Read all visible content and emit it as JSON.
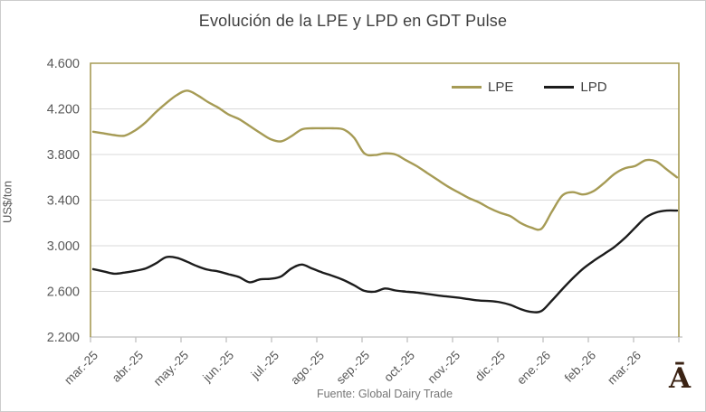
{
  "chart_data": {
    "type": "line",
    "title": "Evolución de la LPE y LPD en GDT Pulse",
    "ylabel": "US$/ton",
    "source_note": "Fuente: Global Dairy Trade",
    "x_tick_labels": [
      "mar.-25",
      "abr.-25",
      "may.-25",
      "jun.-25",
      "jul.-25",
      "ago.-25",
      "sep.-25",
      "oct.-25",
      "nov.-25",
      "dic.-25",
      "ene.-26",
      "feb.-26",
      "mar.-26"
    ],
    "ytick_labels": [
      "4.600",
      "4.200",
      "3.800",
      "3.400",
      "3.000",
      "2.600",
      "2.200"
    ],
    "ytick_values": [
      4600,
      4200,
      3800,
      3400,
      3000,
      2600,
      2200
    ],
    "ylim": [
      2200,
      4600
    ],
    "grid": true,
    "legend_position": "top-right-inside",
    "series": [
      {
        "name": "LPE",
        "color": "#A69B55",
        "values": [
          4000,
          3985,
          3970,
          3965,
          4010,
          4080,
          4170,
          4250,
          4320,
          4360,
          4320,
          4260,
          4210,
          4150,
          4110,
          4050,
          3990,
          3935,
          3915,
          3960,
          4020,
          4030,
          4030,
          4030,
          4020,
          3950,
          3810,
          3795,
          3810,
          3800,
          3750,
          3700,
          3640,
          3580,
          3520,
          3470,
          3420,
          3380,
          3330,
          3290,
          3260,
          3200,
          3160,
          3150,
          3300,
          3440,
          3470,
          3450,
          3480,
          3550,
          3630,
          3680,
          3700,
          3750,
          3740,
          3670,
          3600
        ]
      },
      {
        "name": "LPD",
        "color": "#1C1C1C",
        "values": [
          2795,
          2775,
          2755,
          2765,
          2780,
          2800,
          2845,
          2900,
          2895,
          2860,
          2820,
          2790,
          2775,
          2750,
          2725,
          2680,
          2705,
          2710,
          2730,
          2800,
          2835,
          2800,
          2765,
          2735,
          2700,
          2655,
          2605,
          2598,
          2625,
          2608,
          2598,
          2590,
          2578,
          2565,
          2555,
          2545,
          2532,
          2520,
          2515,
          2505,
          2482,
          2445,
          2420,
          2428,
          2520,
          2620,
          2715,
          2800,
          2868,
          2928,
          2990,
          3068,
          3160,
          3248,
          3292,
          3308,
          3308
        ]
      }
    ]
  },
  "branding": {
    "logo_text": "Ā",
    "logo_color": "#3B2314"
  },
  "style": {
    "plot_border_color": "#A69B55",
    "gridline_color": "#D9D9D9",
    "axis_color": "#BFBFBF",
    "tick_text_color": "#595959",
    "title_color": "#3F3F3F",
    "source_color": "#757575",
    "background": "#FFFFFF"
  }
}
